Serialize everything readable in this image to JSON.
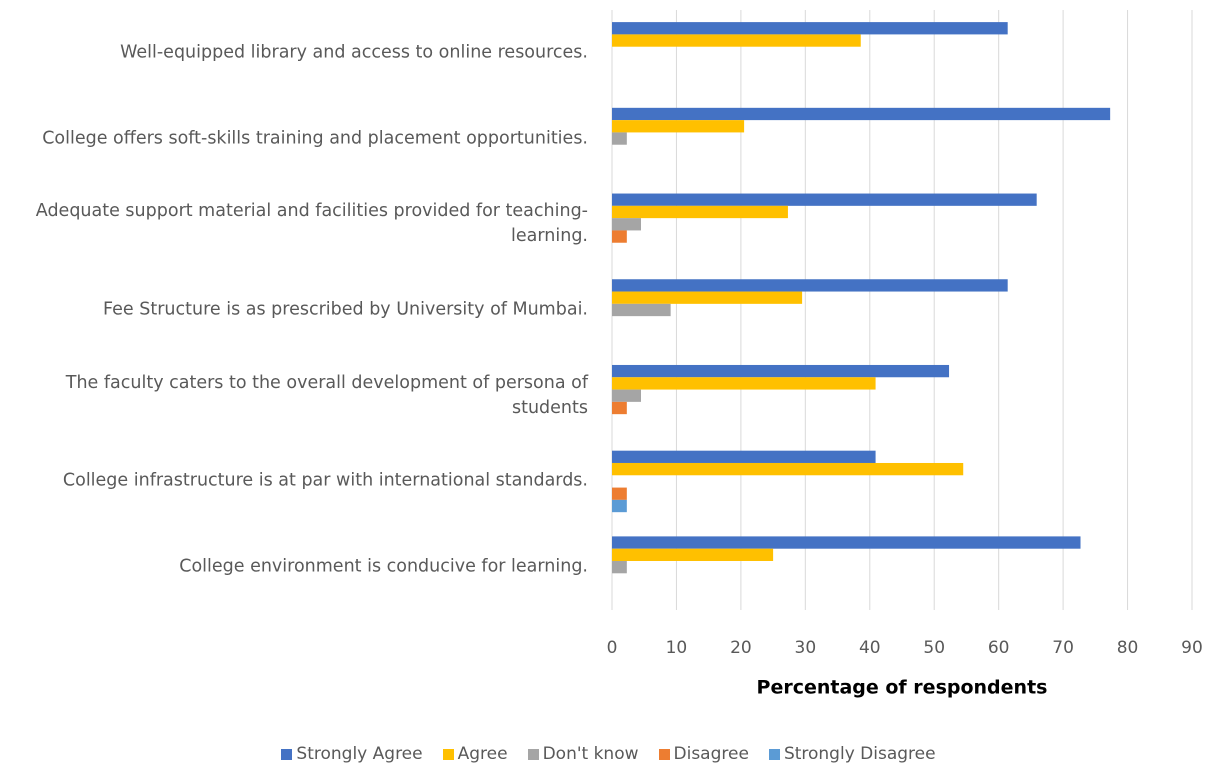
{
  "chart_data": {
    "type": "hbar",
    "x_label": "Percentage of respondents",
    "categories": [
      "Well-equipped library and access to online resources.",
      "College offers soft-skills training and placement opportunities.",
      "Adequate support material and facilities provided for teaching-learning.",
      "Fee Structure is as prescribed by University of Mumbai.",
      "The faculty caters to the overall development of persona of students",
      "College infrastructure is at par with international standards.",
      "College environment is conducive for learning."
    ],
    "series": [
      {
        "name": "Strongly Agree",
        "color": "#4472c4",
        "values": [
          61.4,
          77.3,
          65.9,
          61.4,
          52.3,
          40.9,
          72.7
        ]
      },
      {
        "name": "Agree",
        "color": "#ffc000",
        "values": [
          38.6,
          20.5,
          27.3,
          29.5,
          40.9,
          54.5,
          25
        ]
      },
      {
        "name": "Don't know",
        "color": "#a5a5a5",
        "values": [
          null,
          2.3,
          4.5,
          9.1,
          4.5,
          null,
          2.3
        ]
      },
      {
        "name": "Disagree",
        "color": "#ed7d31",
        "values": [
          null,
          null,
          2.3,
          null,
          2.3,
          2.3,
          null
        ]
      },
      {
        "name": "Strongly Disagree",
        "color": "#5b9bd5",
        "values": [
          null,
          null,
          null,
          null,
          null,
          2.3,
          null
        ]
      }
    ],
    "xlim": [
      0,
      90
    ],
    "xticks": [
      0,
      10,
      20,
      30,
      40,
      50,
      60,
      70,
      80,
      90
    ],
    "grid": true,
    "legend": "bottom"
  }
}
